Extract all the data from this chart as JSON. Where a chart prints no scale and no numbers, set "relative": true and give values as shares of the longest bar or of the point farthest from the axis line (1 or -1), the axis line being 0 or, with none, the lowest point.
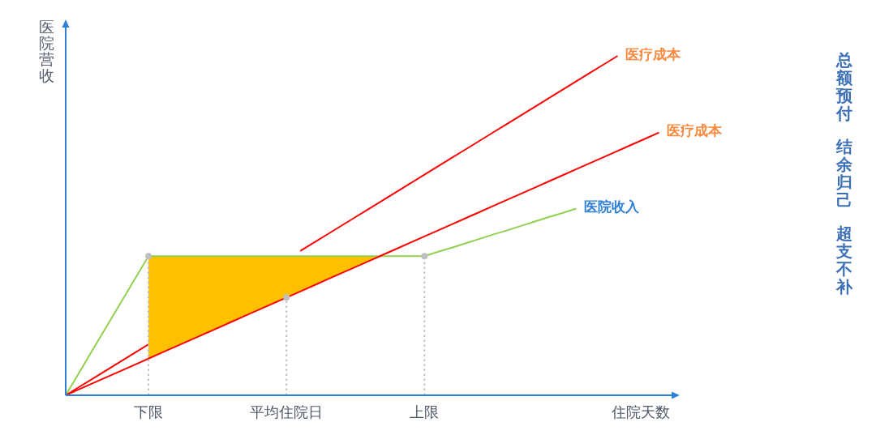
{
  "chart_data": {
    "type": "line",
    "xlabel": "住院天数",
    "ylabel": "医院营收",
    "relative": true,
    "legend": false,
    "marker": "none",
    "grid": false,
    "tick_labels": "x",
    "categories": [
      null,
      null,
      null,
      null,
      null,
      null,
      "下限",
      null,
      null,
      null,
      null,
      null,
      null,
      null,
      null,
      null,
      "平均住院日",
      null,
      null,
      null,
      null,
      null,
      null,
      null,
      null,
      null,
      "上限",
      null,
      null,
      null,
      null,
      null,
      null,
      null,
      null,
      null,
      null,
      null,
      null,
      null,
      null,
      null,
      null,
      null
    ],
    "series": [
      {
        "type": "line",
        "color": "#ffc000",
        "values": [
          null,
          null,
          null,
          null,
          null,
          null,
          null,
          null,
          null,
          null,
          null,
          null,
          null,
          null,
          null,
          null,
          null,
          null,
          null,
          null,
          null,
          null,
          null,
          null,
          null,
          null,
          null,
          null,
          null,
          null,
          null,
          null,
          null,
          null,
          null,
          null,
          null,
          null,
          null,
          null,
          null,
          null,
          null,
          null
        ],
        "upper": [
          null,
          null,
          null,
          null,
          null,
          null,
          0.41,
          0.41,
          0.41,
          0.41,
          0.41,
          0.41,
          0.41,
          0.41,
          0.41,
          0.41,
          0.41,
          0.41,
          0.41,
          0.41,
          0.41,
          0.41,
          0.41,
          0.41,
          null,
          null,
          null,
          null,
          null,
          null,
          null,
          null,
          null,
          null,
          null,
          null,
          null,
          null,
          null,
          null,
          null,
          null,
          null,
          null
        ],
        "lower": [
          null,
          null,
          null,
          null,
          null,
          null,
          0.108,
          0.126,
          0.144,
          0.162,
          0.18,
          0.198,
          0.216,
          0.234,
          0.252,
          0.27,
          0.288,
          0.306,
          0.324,
          0.342,
          0.36,
          0.378,
          0.396,
          0.41,
          null,
          null,
          null,
          null,
          null,
          null,
          null,
          null,
          null,
          null,
          null,
          null,
          null,
          null,
          null,
          null,
          null,
          null,
          null,
          null
        ]
      },
      {
        "name": "医疗成本",
        "type": "line",
        "color": "#ff0000",
        "values": [
          0,
          0.025,
          0.05,
          0.075,
          0.1,
          0.125,
          0.15,
          null,
          null,
          null,
          null,
          null,
          null,
          null,
          null,
          null,
          null,
          0.425,
          0.45,
          0.475,
          0.5,
          0.525,
          0.55,
          0.575,
          0.6,
          0.625,
          0.65,
          0.675,
          0.7,
          0.725,
          0.75,
          0.775,
          0.8,
          0.825,
          0.85,
          0.875,
          0.9,
          0.925,
          0.95,
          0.975,
          1,
          null,
          null,
          null
        ]
      },
      {
        "name": "医院收入",
        "type": "line",
        "color": "#92d050",
        "values": [
          0,
          0.068,
          0.137,
          0.205,
          0.273,
          0.342,
          0.41,
          0.41,
          0.41,
          0.41,
          0.41,
          0.41,
          0.41,
          0.41,
          0.41,
          0.41,
          0.41,
          0.41,
          0.41,
          0.41,
          0.41,
          0.41,
          0.41,
          0.41,
          0.41,
          0.41,
          0.41,
          0.423,
          0.435,
          0.448,
          0.461,
          0.474,
          0.486,
          0.499,
          0.512,
          0.525,
          0.537,
          0.55,
          null,
          null,
          null,
          null,
          null,
          null
        ]
      },
      {
        "name": "医疗成本",
        "type": "line",
        "color": "#ff0000",
        "values": [
          0,
          0.018,
          0.036,
          0.054,
          0.072,
          0.09,
          0.108,
          0.126,
          0.144,
          0.162,
          0.18,
          0.198,
          0.216,
          0.234,
          0.252,
          0.27,
          0.288,
          0.306,
          0.324,
          0.342,
          0.36,
          0.378,
          0.396,
          0.414,
          0.432,
          0.45,
          0.468,
          0.486,
          0.504,
          0.522,
          0.54,
          0.558,
          0.576,
          0.594,
          0.612,
          0.63,
          0.648,
          0.666,
          0.684,
          0.702,
          0.72,
          0.738,
          0.756,
          0.774
        ]
      },
      {
        "type": "lollipop",
        "color": "#bfbfbf",
        "line_style": "dotted",
        "marker": "circle",
        "values": [
          null,
          null,
          null,
          null,
          null,
          null,
          0.41,
          null,
          null,
          null,
          null,
          null,
          null,
          null,
          null,
          null,
          0.288,
          null,
          null,
          null,
          null,
          null,
          null,
          null,
          null,
          null,
          0.41,
          null,
          null,
          null,
          null,
          null,
          null,
          null,
          null,
          null,
          null,
          null,
          null,
          null,
          null,
          null,
          null,
          null
        ]
      }
    ],
    "annotations": [
      "总额预付",
      "结余归己",
      "超支不补"
    ]
  }
}
